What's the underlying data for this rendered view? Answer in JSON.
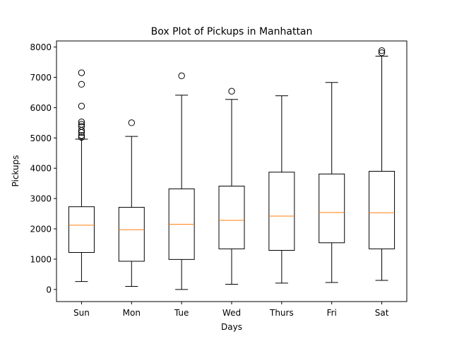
{
  "chart_data": {
    "type": "box",
    "title": "Box Plot of Pickups in Manhattan",
    "xlabel": "Days",
    "ylabel": "Pickups",
    "ylim": [
      -400,
      8200
    ],
    "yticks": [
      0,
      1000,
      2000,
      3000,
      4000,
      5000,
      6000,
      7000,
      8000
    ],
    "grid": false,
    "colors": {
      "box": "#000000",
      "median": "#ff7f0e",
      "flier": "#000000"
    },
    "categories": [
      "Sun",
      "Mon",
      "Tue",
      "Wed",
      "Thurs",
      "Fri",
      "Sat"
    ],
    "boxes": [
      {
        "category": "Sun",
        "whisker_low": 260,
        "q1": 1220,
        "median": 2120,
        "q3": 2730,
        "whisker_high": 4960,
        "outliers": [
          5020,
          5080,
          5180,
          5250,
          5380,
          5450,
          5530,
          6050,
          6770,
          7150
        ]
      },
      {
        "category": "Mon",
        "whisker_low": 100,
        "q1": 930,
        "median": 1970,
        "q3": 2710,
        "whisker_high": 5050,
        "outliers": [
          5500
        ]
      },
      {
        "category": "Tue",
        "whisker_low": 0,
        "q1": 990,
        "median": 2150,
        "q3": 3320,
        "whisker_high": 6410,
        "outliers": [
          7050
        ]
      },
      {
        "category": "Wed",
        "whisker_low": 170,
        "q1": 1340,
        "median": 2280,
        "q3": 3410,
        "whisker_high": 6270,
        "outliers": [
          6540
        ]
      },
      {
        "category": "Thurs",
        "whisker_low": 210,
        "q1": 1290,
        "median": 2420,
        "q3": 3870,
        "whisker_high": 6390,
        "outliers": []
      },
      {
        "category": "Fri",
        "whisker_low": 230,
        "q1": 1540,
        "median": 2540,
        "q3": 3810,
        "whisker_high": 6830,
        "outliers": []
      },
      {
        "category": "Sat",
        "whisker_low": 300,
        "q1": 1340,
        "median": 2530,
        "q3": 3900,
        "whisker_high": 7700,
        "outliers": [
          7810,
          7880
        ]
      }
    ]
  }
}
